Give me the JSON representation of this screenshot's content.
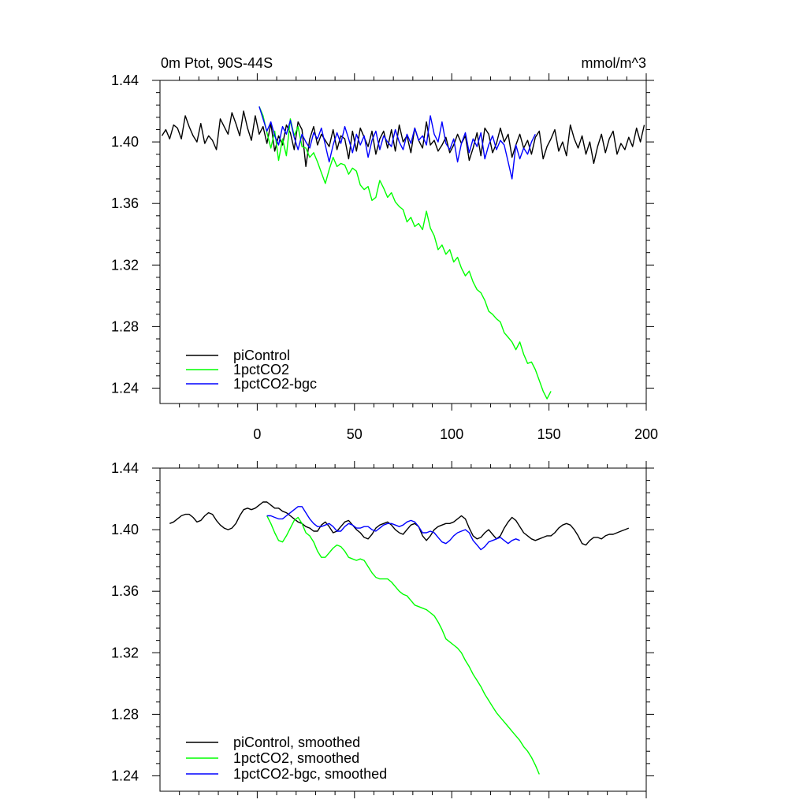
{
  "chart_data": [
    {
      "type": "line",
      "title": "0m Ptot, 90S-44S",
      "units": "mmol/m^3",
      "xlabel": "",
      "ylabel": "",
      "xlim": [
        -50,
        200
      ],
      "ylim": [
        1.23,
        1.44
      ],
      "xticks": [
        0,
        50,
        100,
        150,
        200
      ],
      "xtick_labels": [
        "0",
        "50",
        "100",
        "150",
        "200"
      ],
      "yticks": [
        1.24,
        1.28,
        1.32,
        1.36,
        1.4,
        1.44
      ],
      "ytick_labels": [
        "1.24",
        "1.28",
        "1.32",
        "1.36",
        "1.40",
        "1.44"
      ],
      "grid": false,
      "legend_position": "bottom-left",
      "series": [
        {
          "name": "piControl",
          "color": "#000000",
          "x_start": -49,
          "x_step": 2,
          "values": [
            1.404,
            1.408,
            1.402,
            1.411,
            1.409,
            1.402,
            1.417,
            1.41,
            1.404,
            1.4,
            1.412,
            1.399,
            1.404,
            1.401,
            1.395,
            1.415,
            1.41,
            1.405,
            1.419,
            1.412,
            1.404,
            1.42,
            1.409,
            1.401,
            1.417,
            1.405,
            1.41,
            1.399,
            1.412,
            1.394,
            1.404,
            1.398,
            1.411,
            1.406,
            1.395,
            1.413,
            1.408,
            1.384,
            1.402,
            1.41,
            1.398,
            1.405,
            1.401,
            1.397,
            1.408,
            1.395,
            1.404,
            1.402,
            1.389,
            1.407,
            1.394,
            1.409,
            1.403,
            1.397,
            1.407,
            1.392,
            1.402,
            1.407,
            1.396,
            1.408,
            1.394,
            1.411,
            1.4,
            1.404,
            1.393,
            1.409,
            1.401,
            1.396,
            1.413,
            1.398,
            1.401,
            1.394,
            1.398,
            1.403,
            1.393,
            1.398,
            1.405,
            1.399,
            1.404,
            1.388,
            1.396,
            1.406,
            1.391,
            1.409,
            1.405,
            1.393,
            1.399,
            1.409,
            1.4,
            1.405,
            1.39,
            1.398,
            1.405,
            1.396,
            1.401,
            1.392,
            1.403,
            1.407,
            1.389,
            1.397,
            1.402,
            1.408,
            1.394,
            1.4,
            1.391,
            1.411,
            1.402,
            1.396,
            1.404,
            1.392,
            1.4,
            1.386,
            1.397,
            1.405,
            1.393,
            1.402,
            1.407,
            1.392,
            1.399,
            1.395,
            1.403,
            1.397,
            1.409,
            1.4,
            1.411
          ]
        },
        {
          "name": "1pctCO2",
          "color": "#00ff00",
          "x_start": 1,
          "x_step": 2,
          "values": [
            1.423,
            1.417,
            1.406,
            1.396,
            1.407,
            1.388,
            1.402,
            1.391,
            1.415,
            1.404,
            1.41,
            1.397,
            1.396,
            1.39,
            1.393,
            1.387,
            1.38,
            1.373,
            1.382,
            1.39,
            1.384,
            1.386,
            1.385,
            1.379,
            1.383,
            1.381,
            1.372,
            1.369,
            1.371,
            1.362,
            1.364,
            1.375,
            1.37,
            1.364,
            1.367,
            1.361,
            1.358,
            1.356,
            1.348,
            1.351,
            1.345,
            1.347,
            1.343,
            1.355,
            1.344,
            1.339,
            1.33,
            1.333,
            1.327,
            1.33,
            1.322,
            1.325,
            1.318,
            1.313,
            1.316,
            1.309,
            1.304,
            1.302,
            1.297,
            1.29,
            1.288,
            1.285,
            1.283,
            1.276,
            1.273,
            1.27,
            1.265,
            1.27,
            1.262,
            1.256,
            1.257,
            1.252,
            1.245,
            1.238,
            1.233,
            1.238
          ]
        },
        {
          "name": "1pctCO2-bgc",
          "color": "#0000ff",
          "x_start": 1,
          "x_step": 2,
          "values": [
            1.423,
            1.415,
            1.407,
            1.413,
            1.404,
            1.398,
            1.41,
            1.405,
            1.414,
            1.403,
            1.395,
            1.405,
            1.4,
            1.396,
            1.406,
            1.402,
            1.409,
            1.398,
            1.387,
            1.398,
            1.406,
            1.399,
            1.41,
            1.402,
            1.393,
            1.405,
            1.398,
            1.404,
            1.39,
            1.401,
            1.407,
            1.395,
            1.404,
            1.4,
            1.397,
            1.408,
            1.4,
            1.395,
            1.405,
            1.399,
            1.409,
            1.401,
            1.404,
            1.398,
            1.417,
            1.405,
            1.4,
            1.413,
            1.399,
            1.395,
            1.402,
            1.387,
            1.399,
            1.406,
            1.393,
            1.402,
            1.397,
            1.406,
            1.389,
            1.398,
            1.404,
            1.395,
            1.401,
            1.398,
            1.387,
            1.376,
            1.398,
            1.389,
            1.396,
            1.392,
            1.4,
            1.405
          ]
        }
      ]
    },
    {
      "type": "line",
      "title": "",
      "xlabel": "",
      "ylabel": "",
      "xlim": [
        -50,
        200
      ],
      "ylim": [
        1.23,
        1.44
      ],
      "xticks": [
        0,
        50,
        100,
        150,
        200
      ],
      "yticks": [
        1.24,
        1.28,
        1.32,
        1.36,
        1.4,
        1.44
      ],
      "ytick_labels": [
        "1.24",
        "1.28",
        "1.32",
        "1.36",
        "1.40",
        "1.44"
      ],
      "grid": false,
      "legend_position": "bottom-left",
      "series": [
        {
          "name": "piControl, smoothed",
          "color": "#000000",
          "x_start": -45,
          "x_step": 2,
          "values": [
            1.404,
            1.405,
            1.407,
            1.409,
            1.41,
            1.41,
            1.408,
            1.405,
            1.406,
            1.409,
            1.411,
            1.41,
            1.406,
            1.403,
            1.401,
            1.4,
            1.401,
            1.404,
            1.409,
            1.413,
            1.414,
            1.413,
            1.414,
            1.416,
            1.418,
            1.418,
            1.416,
            1.414,
            1.414,
            1.412,
            1.411,
            1.409,
            1.407,
            1.405,
            1.404,
            1.402,
            1.401,
            1.399,
            1.399,
            1.403,
            1.405,
            1.402,
            1.398,
            1.399,
            1.402,
            1.405,
            1.406,
            1.403,
            1.4,
            1.398,
            1.395,
            1.394,
            1.397,
            1.401,
            1.403,
            1.404,
            1.405,
            1.403,
            1.4,
            1.398,
            1.397,
            1.4,
            1.403,
            1.404,
            1.402,
            1.396,
            1.393,
            1.396,
            1.4,
            1.402,
            1.403,
            1.404,
            1.404,
            1.405,
            1.407,
            1.409,
            1.407,
            1.401,
            1.396,
            1.394,
            1.395,
            1.398,
            1.4,
            1.397,
            1.394,
            1.396,
            1.401,
            1.405,
            1.408,
            1.406,
            1.402,
            1.398,
            1.396,
            1.394,
            1.393,
            1.394,
            1.395,
            1.396,
            1.396,
            1.398,
            1.401,
            1.403,
            1.404,
            1.403,
            1.4,
            1.396,
            1.391,
            1.39,
            1.393,
            1.395,
            1.395,
            1.394,
            1.396,
            1.397,
            1.397,
            1.398,
            1.399,
            1.4,
            1.401
          ]
        },
        {
          "name": "1pctCO2, smoothed",
          "color": "#00ff00",
          "x_start": 5,
          "x_step": 2,
          "values": [
            1.409,
            1.404,
            1.398,
            1.393,
            1.392,
            1.396,
            1.401,
            1.406,
            1.408,
            1.404,
            1.398,
            1.396,
            1.392,
            1.386,
            1.382,
            1.382,
            1.385,
            1.388,
            1.39,
            1.389,
            1.386,
            1.382,
            1.381,
            1.38,
            1.381,
            1.38,
            1.376,
            1.372,
            1.369,
            1.368,
            1.368,
            1.368,
            1.366,
            1.363,
            1.36,
            1.358,
            1.357,
            1.354,
            1.351,
            1.35,
            1.349,
            1.348,
            1.346,
            1.344,
            1.34,
            1.335,
            1.329,
            1.327,
            1.325,
            1.323,
            1.32,
            1.315,
            1.311,
            1.306,
            1.302,
            1.298,
            1.293,
            1.289,
            1.285,
            1.281,
            1.278,
            1.275,
            1.272,
            1.269,
            1.266,
            1.263,
            1.259,
            1.256,
            1.252,
            1.247,
            1.241
          ]
        },
        {
          "name": "1pctCO2-bgc, smoothed",
          "color": "#0000ff",
          "x_start": 5,
          "x_step": 2,
          "values": [
            1.409,
            1.409,
            1.408,
            1.407,
            1.407,
            1.409,
            1.411,
            1.413,
            1.415,
            1.415,
            1.411,
            1.407,
            1.404,
            1.402,
            1.402,
            1.403,
            1.404,
            1.402,
            1.399,
            1.399,
            1.402,
            1.404,
            1.403,
            1.401,
            1.401,
            1.402,
            1.402,
            1.4,
            1.399,
            1.401,
            1.403,
            1.404,
            1.404,
            1.403,
            1.402,
            1.403,
            1.405,
            1.406,
            1.405,
            1.402,
            1.398,
            1.398,
            1.399,
            1.398,
            1.395,
            1.392,
            1.391,
            1.393,
            1.396,
            1.398,
            1.399,
            1.4,
            1.398,
            1.393,
            1.39,
            1.387,
            1.389,
            1.392,
            1.393,
            1.394,
            1.395,
            1.393,
            1.391,
            1.393,
            1.394,
            1.393
          ]
        }
      ]
    }
  ]
}
